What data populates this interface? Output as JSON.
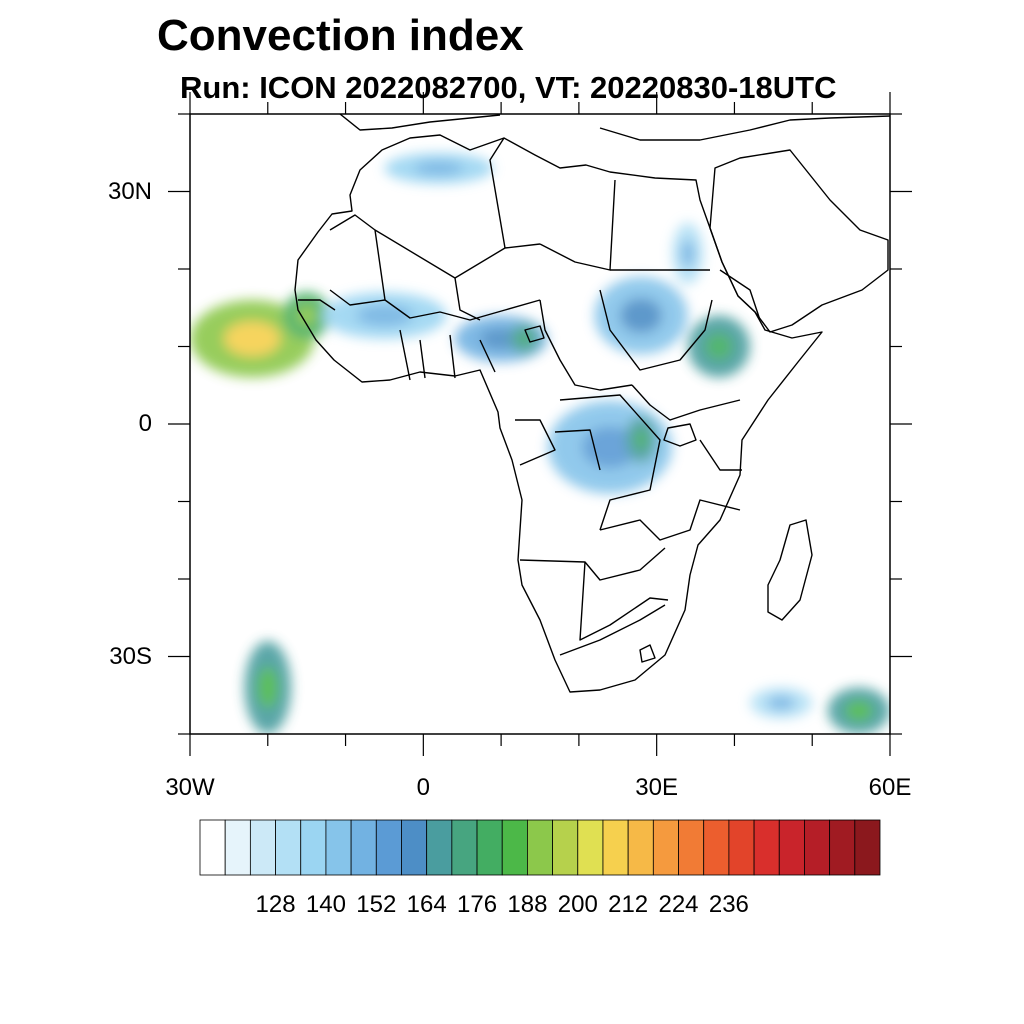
{
  "title": "Convection index",
  "subtitle": "Run: ICON 2022082700,  VT: 20220830-18UTC",
  "map": {
    "lon_range": [
      -30,
      60
    ],
    "lat_range": [
      -40,
      40
    ],
    "x_ticks": [
      {
        "lon": -30,
        "label": "30W"
      },
      {
        "lon": 0,
        "label": "0"
      },
      {
        "lon": 30,
        "label": "30E"
      },
      {
        "lon": 60,
        "label": "60E"
      }
    ],
    "y_ticks": [
      {
        "lat": 30,
        "label": "30N"
      },
      {
        "lat": 0,
        "label": "0"
      },
      {
        "lat": -30,
        "label": "30S"
      }
    ],
    "field_regions": [
      {
        "name": "Atlantic tropical cluster",
        "lon": -22,
        "lat": 11,
        "rlon": 8,
        "rlat": 5,
        "value": 196
      },
      {
        "name": "Senegal coast",
        "lon": -15,
        "lat": 14,
        "rlon": 3,
        "rlat": 3,
        "value": 180
      },
      {
        "name": "Sahel west",
        "lon": -5,
        "lat": 14,
        "rlon": 8,
        "rlat": 3,
        "value": 140
      },
      {
        "name": "Nigeria / Chad",
        "lon": 10,
        "lat": 11,
        "rlon": 6,
        "rlat": 3,
        "value": 152
      },
      {
        "name": "Lake Chad area",
        "lon": 13,
        "lat": 11,
        "rlon": 2,
        "rlat": 2,
        "value": 170
      },
      {
        "name": "Sudan",
        "lon": 28,
        "lat": 14,
        "rlon": 6,
        "rlat": 5,
        "value": 148
      },
      {
        "name": "Ethiopian highlands",
        "lon": 38,
        "lat": 10,
        "rlon": 4,
        "rlat": 4,
        "value": 168
      },
      {
        "name": "Congo basin",
        "lon": 24,
        "lat": -3,
        "rlon": 8,
        "rlat": 6,
        "value": 146
      },
      {
        "name": "Lake Tanganyika",
        "lon": 28,
        "lat": -2,
        "rlon": 2,
        "rlat": 3,
        "value": 168
      },
      {
        "name": "Atlas / Maghreb",
        "lon": 2,
        "lat": 33,
        "rlon": 7,
        "rlat": 2,
        "value": 140
      },
      {
        "name": "Red Sea coast",
        "lon": 34,
        "lat": 22,
        "rlon": 2,
        "rlat": 4,
        "value": 136
      },
      {
        "name": "South Atlantic front",
        "lon": -20,
        "lat": -34,
        "rlon": 3,
        "rlat": 6,
        "value": 172
      },
      {
        "name": "Southwest Indian Ocean front",
        "lon": 56,
        "lat": -37,
        "rlon": 4,
        "rlat": 3,
        "value": 172
      },
      {
        "name": "Indian Ocean cells",
        "lon": 46,
        "lat": -36,
        "rlon": 4,
        "rlat": 2,
        "value": 136
      }
    ]
  },
  "colorbar": {
    "labels": [
      "128",
      "140",
      "152",
      "164",
      "176",
      "188",
      "200",
      "212",
      "224",
      "236"
    ],
    "colors": [
      "#ffffff",
      "#e6f4fb",
      "#cce9f7",
      "#b3e0f5",
      "#9bd5f2",
      "#86c4ea",
      "#72b2e2",
      "#5b9bd5",
      "#4d8ec6",
      "#4a9d9f",
      "#47a580",
      "#43ad62",
      "#4cb848",
      "#8cc84b",
      "#b6d14c",
      "#e0e052",
      "#f6d04e",
      "#f6b947",
      "#f59a3e",
      "#f17b35",
      "#ec5e2e",
      "#e2442a",
      "#d92f2c",
      "#c9242b",
      "#b51e27",
      "#a01b22",
      "#8b181d"
    ]
  }
}
